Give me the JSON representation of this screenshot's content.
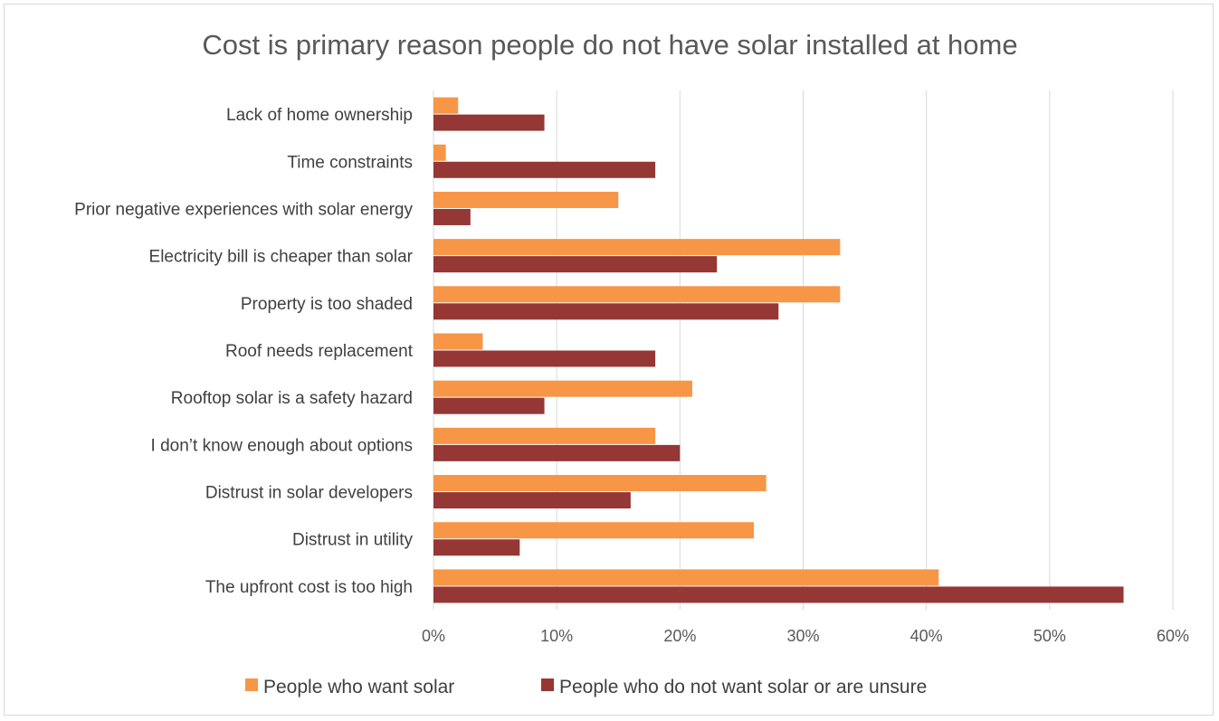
{
  "chart_data": {
    "type": "bar",
    "orientation": "horizontal",
    "title": "Cost is primary reason people do not have solar installed at home",
    "categories": [
      "Lack of home ownership",
      "Time constraints",
      "Prior negative experiences with solar energy",
      "Electricity bill is cheaper than solar",
      "Property is too shaded",
      "Roof needs replacement",
      "Rooftop solar is a safety hazard",
      "I don’t know enough about options",
      "Distrust in solar developers",
      "Distrust in utility",
      "The upfront cost is too high"
    ],
    "series": [
      {
        "name": "People who want solar",
        "color": "#f79646",
        "values": [
          2,
          1,
          15,
          33,
          33,
          4,
          21,
          18,
          27,
          26,
          41
        ]
      },
      {
        "name": "People who do not want solar or are unsure",
        "color": "#953735",
        "values": [
          9,
          18,
          3,
          23,
          28,
          18,
          9,
          20,
          16,
          7,
          56
        ]
      }
    ],
    "x_ticks": [
      "0%",
      "10%",
      "20%",
      "30%",
      "40%",
      "50%",
      "60%"
    ],
    "xlim": [
      0,
      60
    ],
    "grid": true,
    "legend": "bottom"
  }
}
